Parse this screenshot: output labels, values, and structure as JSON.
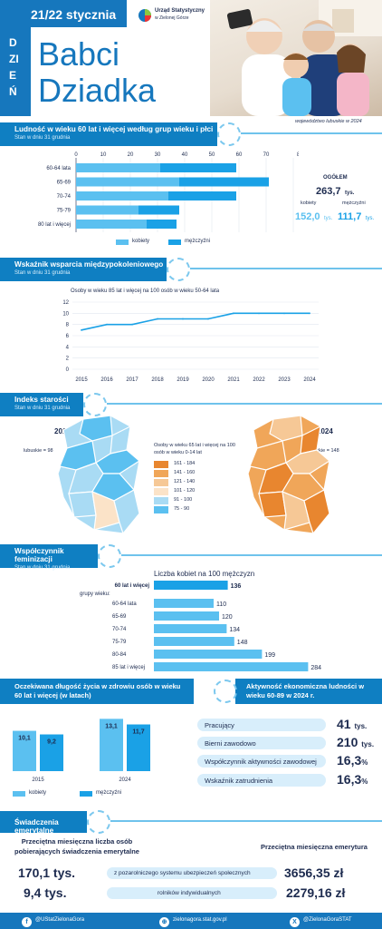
{
  "header": {
    "date": "21/22 stycznia",
    "logo_line1": "Urząd Statystyczny",
    "logo_line2": "w Zielonej Górze",
    "vertical": "DZIEŃ",
    "title_line1": "Babci",
    "title_line2": "Dziadka",
    "region_note": "województwo lubuskie w 2024"
  },
  "colors": {
    "light": "#5bc0f0",
    "dark": "#1aa1e6",
    "navy": "#1d2b4f",
    "bar": "#0f7fc2"
  },
  "population": {
    "title": "Ludność w wieku 60 lat i więcej według grup wieku i płci",
    "subtitle": "Stan w dniu 31 grudnia",
    "axis_unit": "80 tys.",
    "total_label": "OGÓŁEM",
    "total_value": "263,7",
    "total_unit": "tys.",
    "women_label": "kobiety",
    "women_value": "152,0",
    "women_unit": "tys.",
    "men_label": "mężczyźni",
    "men_value": "111,7",
    "men_unit": "tys.",
    "legend_women": "kobiety",
    "legend_men": "mężczyźni"
  },
  "support": {
    "title": "Wskaźnik wsparcia międzypokoleniowego",
    "subtitle": "Stan w dniu 31 grudnia",
    "chart_title": "Osoby w wieku 85 lat i więcej na 100 osób w wieku 50-64 lata"
  },
  "aging": {
    "title": "Indeks starości",
    "subtitle": "Stan w dniu 31 grudnia",
    "year_a": "2015",
    "year_b": "2024",
    "value_a": "lubuskie = 98",
    "value_b": "lubuskie = 148",
    "legend_title": "Osoby w wieku 65 lat i więcej na 100 osób w wieku 0-14 lat",
    "legend": [
      {
        "label": "161 - 184",
        "color": "#e8862f"
      },
      {
        "label": "141 - 160",
        "color": "#f0a659"
      },
      {
        "label": "121 - 140",
        "color": "#f6c896"
      },
      {
        "label": "101 - 120",
        "color": "#fbe3c8"
      },
      {
        "label": "91 - 100",
        "color": "#a9dbf4"
      },
      {
        "label": "75 -  90",
        "color": "#5bc0f0"
      }
    ]
  },
  "femin": {
    "title": "Współczynnik feminizacji",
    "subtitle": "Stan w dniu 31 grudnia",
    "chart_title": "Liczba kobiet na 100 mężczyzn",
    "groups_label": "grupy wieku:"
  },
  "life": {
    "title": "Oczekiwana długość życia w zdrowiu osób w wieku 60 lat i więcej (w latach)",
    "legend_women": "kobiety",
    "legend_men": "mężczyźni"
  },
  "activity": {
    "title": "Aktywność ekonomiczna ludności w wieku 60-89 w 2024 r.",
    "rows": [
      {
        "label": "Pracujący",
        "value": "41",
        "unit": "tys."
      },
      {
        "label": "Bierni zawodowo",
        "value": "210",
        "unit": "tys."
      },
      {
        "label": "Współczynnik aktywności zawodowej",
        "value": "16,3",
        "unit": "%"
      },
      {
        "label": "Wskaźnik zatrudnienia",
        "value": "16,3",
        "unit": "%"
      }
    ]
  },
  "pension": {
    "title": "Świadczenia emerytalne",
    "left_head": "Przeciętna miesięczna liczba osób pobierających świadczenia emerytalne",
    "right_head": "Przeciętna miesięczna emerytura",
    "rows": [
      {
        "count": "170,1 tys.",
        "label": "z pozarolniczego systemu ubezpieczeń społecznych",
        "amount": "3656,35 zł"
      },
      {
        "count": "9,4 tys.",
        "label": "rolników indywidualnych",
        "amount": "2279,16 zł"
      }
    ]
  },
  "footer": {
    "facebook": "@UStatZielonaGora",
    "web": "zielonagora.stat.gov.pl",
    "x": "@ZielonaGoraSTAT"
  },
  "chart_data": [
    {
      "type": "bar",
      "orientation": "horizontal-stacked",
      "categories": [
        "60-64 lata",
        "65-69",
        "70-74",
        "75-79",
        "80 lat i więcej"
      ],
      "series": [
        {
          "name": "kobiety",
          "values": [
            31,
            38,
            34,
            23,
            26
          ]
        },
        {
          "name": "mężczyźni",
          "values": [
            28,
            33,
            25,
            15,
            11
          ]
        }
      ],
      "xticks": [
        0,
        10,
        20,
        30,
        40,
        50,
        60,
        70,
        80
      ],
      "xlim": [
        0,
        80
      ]
    },
    {
      "type": "line",
      "title": "Osoby w wieku 85 lat i więcej na 100 osób w wieku 50-64 lata",
      "x": [
        2015,
        2016,
        2017,
        2018,
        2019,
        2020,
        2021,
        2022,
        2023,
        2024
      ],
      "values": [
        7,
        8,
        8,
        9,
        9,
        9,
        10,
        10,
        10,
        10
      ],
      "yticks": [
        0,
        2,
        4,
        6,
        8,
        10,
        12
      ],
      "ylim": [
        0,
        12
      ]
    },
    {
      "type": "bar",
      "orientation": "horizontal",
      "title": "Liczba kobiet na 100 mężczyzn",
      "categories": [
        "60 lat i więcej",
        "60-64 lata",
        "65-69",
        "70-74",
        "75-79",
        "80-84",
        "85 lat i więcej"
      ],
      "values": [
        136,
        110,
        120,
        134,
        148,
        199,
        284
      ]
    },
    {
      "type": "bar",
      "categories": [
        "2015",
        "2024"
      ],
      "series": [
        {
          "name": "kobiety",
          "values": [
            10.1,
            13.1
          ],
          "labels": [
            "10,1",
            "13,1"
          ]
        },
        {
          "name": "mężczyźni",
          "values": [
            9.2,
            11.7
          ],
          "labels": [
            "9,2",
            "11,7"
          ]
        }
      ]
    }
  ]
}
